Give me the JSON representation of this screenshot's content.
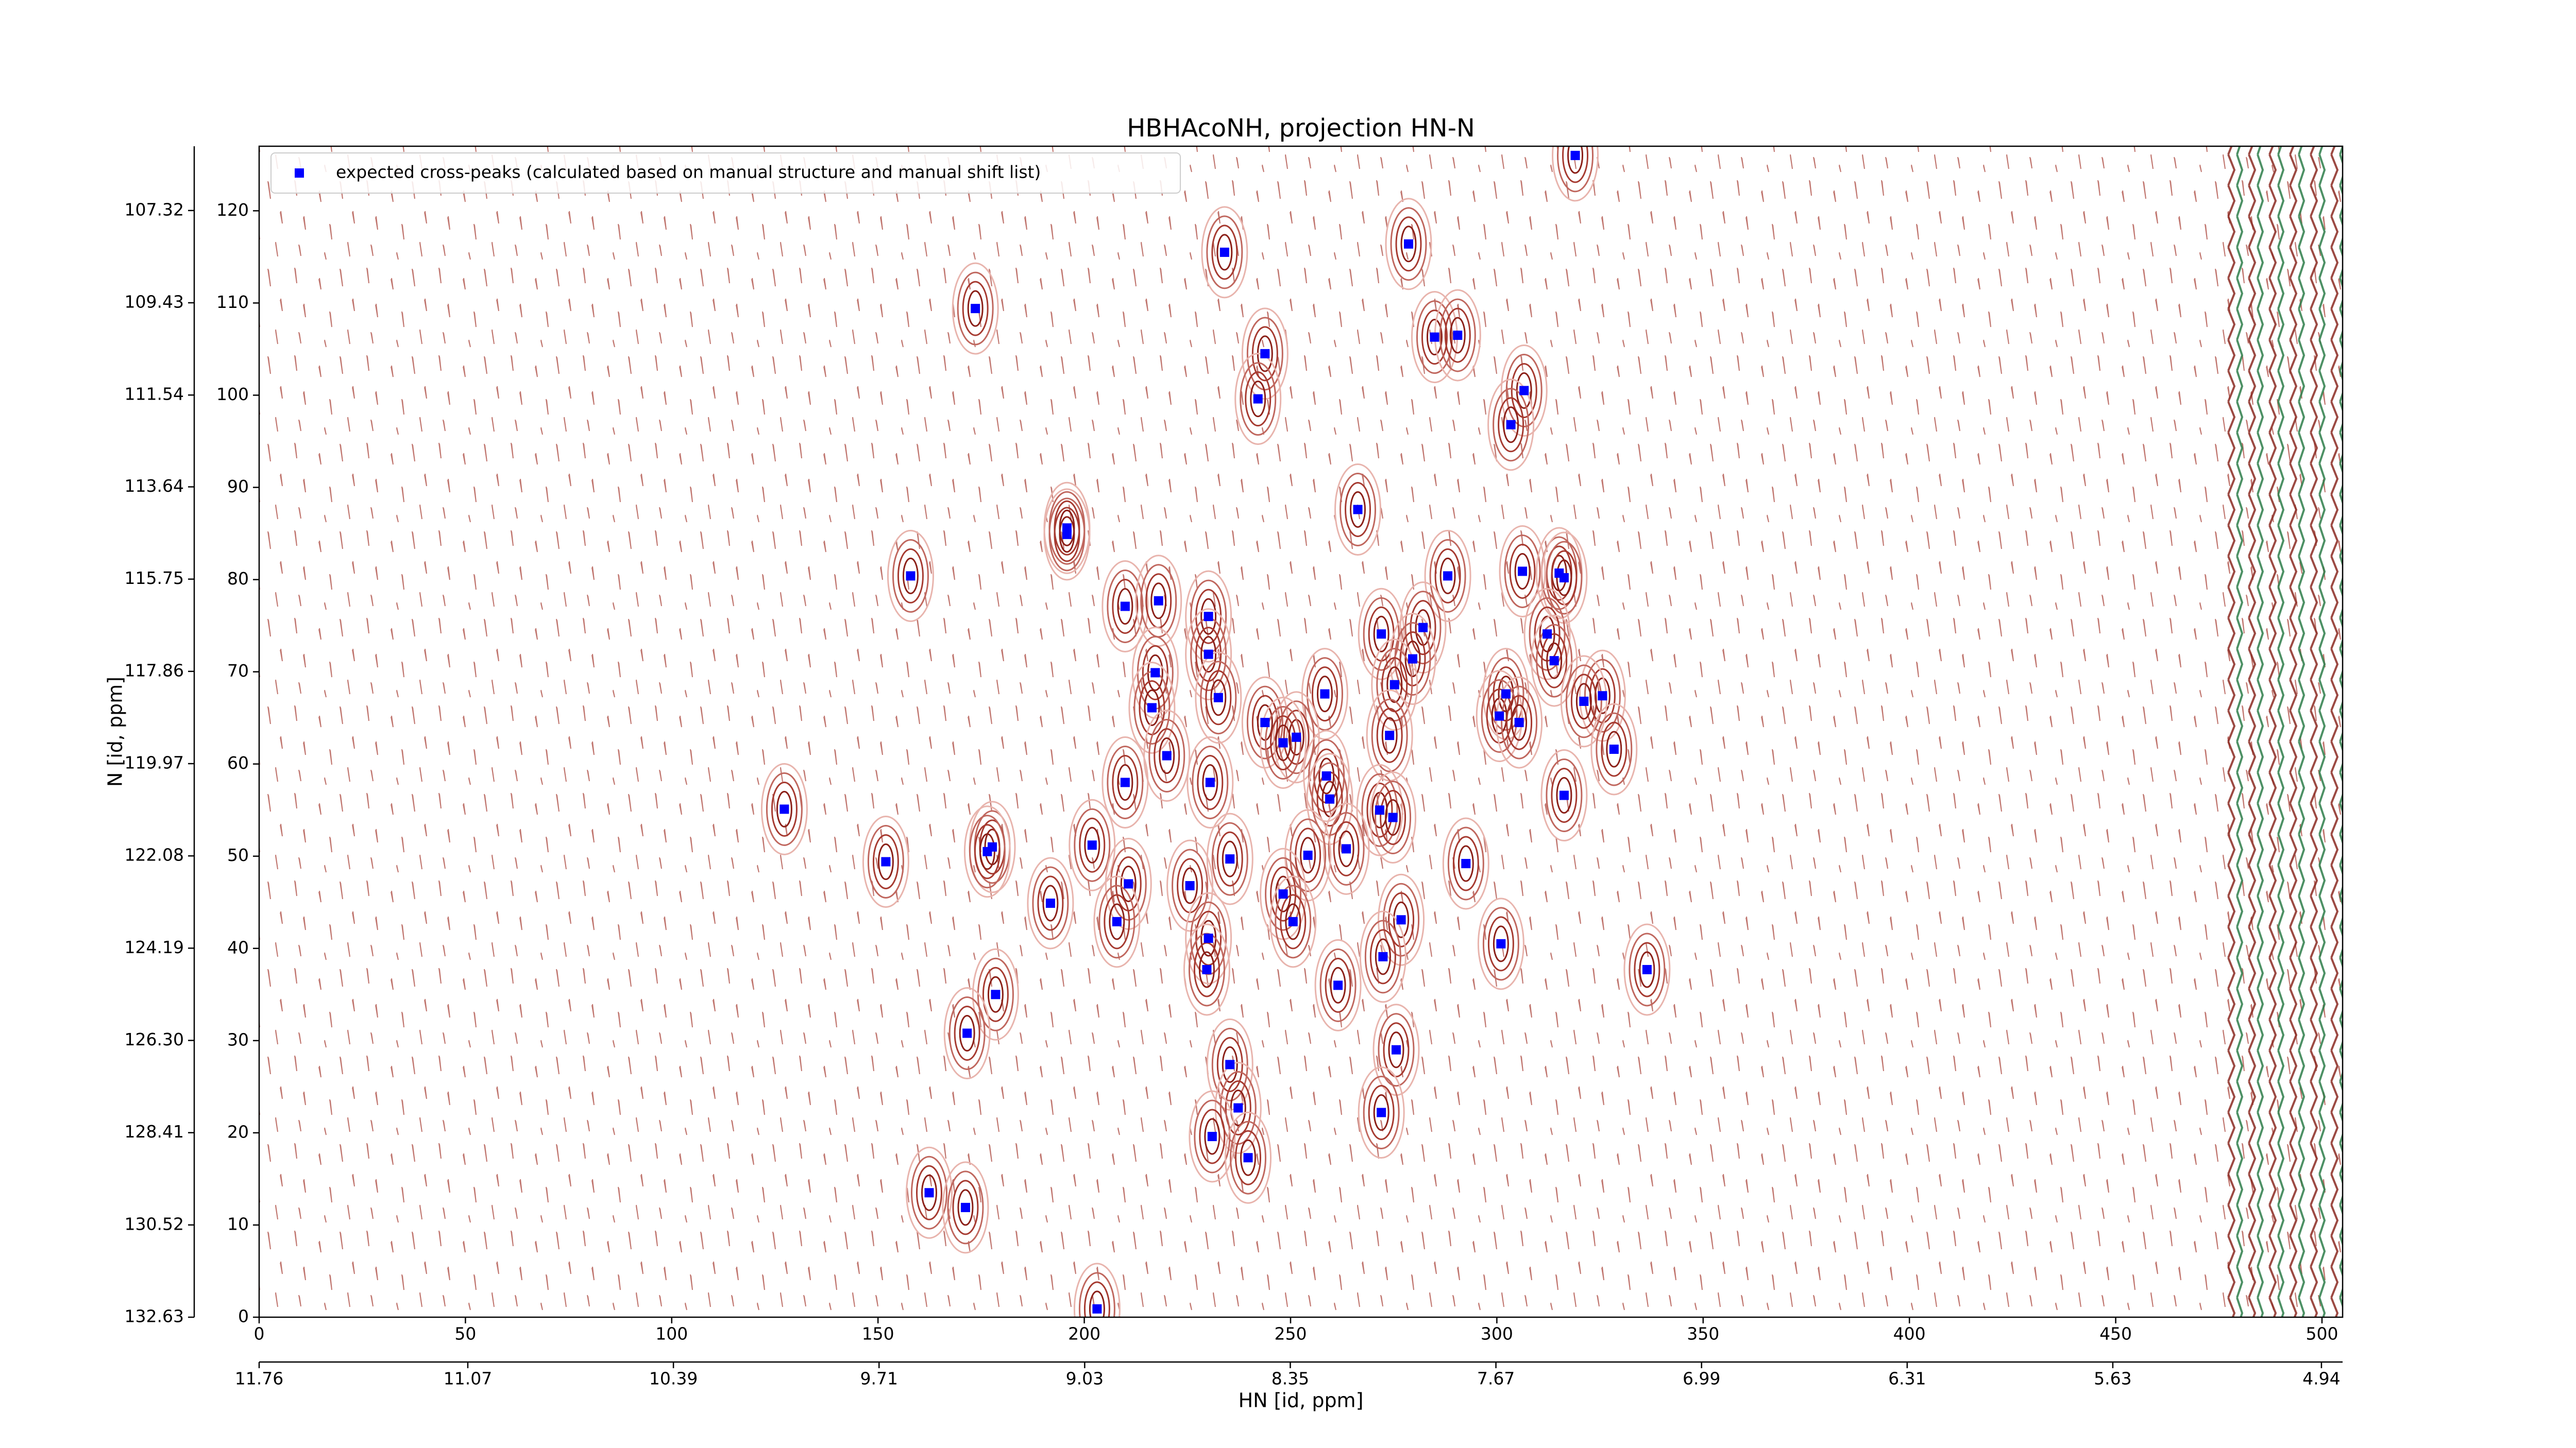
{
  "chart_data": {
    "type": "scatter",
    "title": "HBHAcoNH, projection HN-N",
    "xlabel": "HN [id, ppm]",
    "ylabel": "N [id, ppm]",
    "xlim": [
      0,
      505
    ],
    "ylim": [
      0,
      127
    ],
    "xticks": [
      0,
      50,
      100,
      150,
      200,
      250,
      300,
      350,
      400,
      450,
      500
    ],
    "yticks": [
      0,
      10,
      20,
      30,
      40,
      50,
      60,
      70,
      80,
      90,
      100,
      110,
      120
    ],
    "x2lim": [
      11.76,
      4.87
    ],
    "x2ticks": [
      11.76,
      11.07,
      10.39,
      9.71,
      9.03,
      8.35,
      7.67,
      6.99,
      6.31,
      5.63,
      4.94
    ],
    "y2lim": [
      132.63,
      105.85
    ],
    "y2ticks": [
      132.63,
      130.52,
      128.41,
      {
        "value": 126.3,
        "label": "126.30"
      },
      124.19,
      122.08,
      119.97,
      117.86,
      115.75,
      113.64,
      111.54,
      109.43,
      107.32
    ],
    "legend": "upper left",
    "series": [
      {
        "name": "expected cross-peaks (calculated based on manual structure and manual shift list)",
        "color": "#0000ff",
        "x": [
          319,
          234,
          278.6,
          173.6,
          284.9,
          290.5,
          243.8,
          242.1,
          306.6,
          303.4,
          266.3,
          195.8,
          195.8,
          157.9,
          288.1,
          306.2,
          315.1,
          316.3,
          209.9,
          218,
          230.1,
          272,
          282.1,
          312.2,
          230.1,
          279.6,
          313.9,
          217.2,
          275.2,
          258.3,
          302.2,
          325.6,
          321.1,
          232.5,
          216.4,
          300.6,
          305.4,
          243.8,
          274,
          251.4,
          248.2,
          328.4,
          220,
          258.7,
          209.9,
          230.5,
          259.5,
          316.3,
          271.6,
          274.8,
          127.3,
          177.7,
          176.5,
          201.9,
          263.5,
          254.2,
          235.3,
          292.5,
          151.9,
          210.7,
          225.6,
          248.2,
          191.8,
          207.9,
          250.6,
          276.8,
          230.1,
          301,
          272.4,
          229.7,
          336.4,
          178.5,
          261.5,
          171.6,
          275.6,
          235.3,
          237.3,
          272,
          231,
          239.7,
          162.4,
          171.2,
          203.1
        ],
        "values": [
          126,
          115.5,
          116.4,
          109.4,
          106.3,
          106.5,
          104.5,
          99.6,
          100.5,
          96.8,
          87.6,
          85.6,
          84.9,
          80.4,
          80.4,
          80.9,
          80.7,
          80.2,
          77.1,
          77.7,
          76,
          74.1,
          74.8,
          74.1,
          71.9,
          71.4,
          71.2,
          69.9,
          68.6,
          67.6,
          67.6,
          67.4,
          66.8,
          67.2,
          66.1,
          65.2,
          64.5,
          64.5,
          63.1,
          62.9,
          62.3,
          61.6,
          60.9,
          58.7,
          58,
          58,
          56.2,
          56.6,
          55,
          54.2,
          55.1,
          51,
          50.5,
          51.2,
          50.8,
          50.1,
          49.7,
          49.2,
          49.4,
          47,
          46.8,
          45.9,
          44.9,
          42.9,
          42.9,
          43.1,
          41.1,
          40.5,
          39.1,
          37.7,
          37.7,
          35,
          36,
          30.8,
          29,
          27.4,
          22.7,
          22.2,
          19.6,
          17.3,
          13.5,
          11.9,
          0.9
        ]
      }
    ]
  }
}
